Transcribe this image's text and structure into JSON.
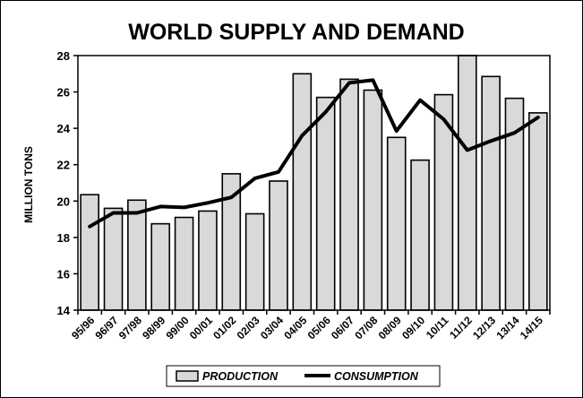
{
  "chart_data": {
    "type": "bar",
    "title": "WORLD SUPPLY AND DEMAND",
    "ylabel": "MILLION TONS",
    "xlabel": "",
    "ylim": [
      14,
      28
    ],
    "yticks": [
      14,
      16,
      18,
      20,
      22,
      24,
      26,
      28
    ],
    "grid": false,
    "legend_position": "bottom",
    "categories": [
      "95/96",
      "96/97",
      "97/98",
      "98/99",
      "99/00",
      "00/01",
      "01/02",
      "02/03",
      "03/04",
      "04/05",
      "05/06",
      "06/07",
      "07/08",
      "08/09",
      "09/10",
      "10/11",
      "11/12",
      "12/13",
      "13/14",
      "14/15"
    ],
    "series": [
      {
        "name": "PRODUCTION",
        "type": "bar",
        "color": "#d9d9d9",
        "values": [
          20.35,
          19.6,
          20.05,
          18.75,
          19.1,
          19.45,
          21.5,
          19.3,
          21.1,
          27.0,
          25.7,
          26.7,
          26.1,
          23.5,
          22.25,
          25.85,
          28.0,
          26.85,
          25.65,
          24.85
        ]
      },
      {
        "name": "CONSUMPTION",
        "type": "line",
        "color": "#000000",
        "values": [
          18.6,
          19.35,
          19.35,
          19.7,
          19.65,
          19.9,
          20.2,
          21.25,
          21.6,
          23.6,
          24.9,
          26.5,
          26.65,
          23.85,
          25.55,
          24.5,
          22.8,
          23.3,
          23.75,
          24.6
        ]
      }
    ]
  }
}
